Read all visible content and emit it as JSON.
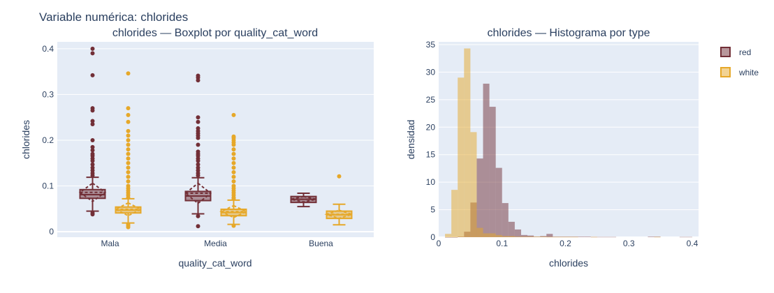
{
  "title": "Variable numérica: chlorides",
  "colors": {
    "red": "#722f37",
    "white": "#e6a829"
  },
  "chart_data": [
    {
      "type": "box",
      "title": "chlorides — Boxplot por quality_cat_word",
      "xlabel": "quality_cat_word",
      "ylabel": "chlorides",
      "categories": [
        "Mala",
        "Media",
        "Buena"
      ],
      "ylim": [
        -0.012,
        0.415
      ],
      "yticks": [
        0,
        0.1,
        0.2,
        0.3,
        0.4
      ],
      "ytick_labels": [
        "0",
        "0.1",
        "0.2",
        "0.3",
        "0.4"
      ],
      "series": [
        {
          "name": "red",
          "boxes": [
            {
              "category": "Mala",
              "lowerfence": 0.045,
              "q1": 0.073,
              "median": 0.081,
              "mean": 0.086,
              "q3": 0.092,
              "upperfence": 0.119,
              "sd": 0.02,
              "outliers": [
                0.4,
                0.39,
                0.342,
                0.27,
                0.265,
                0.242,
                0.235,
                0.2,
                0.185,
                0.178,
                0.17,
                0.166,
                0.16,
                0.155,
                0.147,
                0.14,
                0.134,
                0.128,
                0.123,
                0.041,
                0.038
              ]
            },
            {
              "category": "Media",
              "lowerfence": 0.039,
              "q1": 0.068,
              "median": 0.078,
              "mean": 0.084,
              "q3": 0.088,
              "upperfence": 0.118,
              "sd": 0.022,
              "outliers": [
                0.341,
                0.337,
                0.331,
                0.25,
                0.24,
                0.226,
                0.22,
                0.215,
                0.21,
                0.205,
                0.19,
                0.175,
                0.17,
                0.166,
                0.16,
                0.155,
                0.147,
                0.14,
                0.134,
                0.128,
                0.123,
                0.034,
                0.012
              ]
            },
            {
              "category": "Buena",
              "lowerfence": 0.055,
              "q1": 0.064,
              "median": 0.071,
              "mean": 0.071,
              "q3": 0.077,
              "upperfence": 0.084,
              "sd": 0.006,
              "outliers": []
            }
          ]
        },
        {
          "name": "white",
          "boxes": [
            {
              "category": "Mala",
              "lowerfence": 0.019,
              "q1": 0.041,
              "median": 0.047,
              "mean": 0.049,
              "q3": 0.054,
              "upperfence": 0.072,
              "sd": 0.014,
              "outliers": [
                0.346,
                0.27,
                0.255,
                0.24,
                0.22,
                0.21,
                0.2,
                0.19,
                0.18,
                0.17,
                0.16,
                0.15,
                0.14,
                0.13,
                0.12,
                0.11,
                0.1,
                0.095,
                0.09,
                0.085,
                0.08,
                0.075,
                0.016,
                0.013,
                0.01
              ]
            },
            {
              "category": "Media",
              "lowerfence": 0.016,
              "q1": 0.035,
              "median": 0.042,
              "mean": 0.044,
              "q3": 0.049,
              "upperfence": 0.069,
              "sd": 0.013,
              "outliers": [
                0.255,
                0.208,
                0.205,
                0.2,
                0.195,
                0.19,
                0.18,
                0.17,
                0.16,
                0.15,
                0.14,
                0.13,
                0.12,
                0.11,
                0.1,
                0.095,
                0.09,
                0.085,
                0.08,
                0.075,
                0.072,
                0.013
              ]
            },
            {
              "category": "Buena",
              "lowerfence": 0.015,
              "q1": 0.029,
              "median": 0.037,
              "mean": 0.038,
              "q3": 0.045,
              "upperfence": 0.06,
              "sd": 0.009,
              "outliers": [
                0.121
              ]
            }
          ]
        }
      ]
    },
    {
      "type": "histogram",
      "title": "chlorides — Histograma por type",
      "xlabel": "chlorides",
      "ylabel": "densidad",
      "xlim": [
        0,
        0.41
      ],
      "ylim": [
        0,
        35.5
      ],
      "xticks": [
        0,
        0.1,
        0.2,
        0.3,
        0.4
      ],
      "xtick_labels": [
        "0",
        "0.1",
        "0.2",
        "0.3",
        "0.4"
      ],
      "yticks": [
        0,
        5,
        10,
        15,
        20,
        25,
        30,
        35
      ],
      "ytick_labels": [
        "0",
        "5",
        "10",
        "15",
        "20",
        "25",
        "30",
        "35"
      ],
      "legend_position": "top-right",
      "bin_width": 0.01,
      "series": [
        {
          "name": "red",
          "bins": [
            [
              0.01,
              0
            ],
            [
              0.02,
              0
            ],
            [
              0.03,
              0.1
            ],
            [
              0.04,
              1.0
            ],
            [
              0.05,
              6.3
            ],
            [
              0.06,
              14.3
            ],
            [
              0.07,
              27.9
            ],
            [
              0.08,
              23.7
            ],
            [
              0.09,
              12.6
            ],
            [
              0.1,
              6.2
            ],
            [
              0.11,
              2.8
            ],
            [
              0.12,
              1.4
            ],
            [
              0.13,
              0.4
            ],
            [
              0.14,
              0.3
            ],
            [
              0.15,
              0.1
            ],
            [
              0.16,
              0.2
            ],
            [
              0.17,
              0.6
            ],
            [
              0.18,
              0.1
            ],
            [
              0.19,
              0.1
            ],
            [
              0.2,
              0.1
            ],
            [
              0.21,
              0.1
            ],
            [
              0.22,
              0.1
            ],
            [
              0.23,
              0.1
            ],
            [
              0.24,
              0.05
            ],
            [
              0.25,
              0.05
            ],
            [
              0.26,
              0.05
            ],
            [
              0.27,
              0.05
            ],
            [
              0.33,
              0.1
            ],
            [
              0.34,
              0.1
            ],
            [
              0.38,
              0.05
            ],
            [
              0.39,
              0.05
            ]
          ]
        },
        {
          "name": "white",
          "bins": [
            [
              0.01,
              0.6
            ],
            [
              0.02,
              8.6
            ],
            [
              0.03,
              29.0
            ],
            [
              0.04,
              34.3
            ],
            [
              0.05,
              19.1
            ],
            [
              0.06,
              1.7
            ],
            [
              0.07,
              0.7
            ],
            [
              0.08,
              0.7
            ],
            [
              0.09,
              0.4
            ],
            [
              0.1,
              0.2
            ],
            [
              0.11,
              0.2
            ],
            [
              0.12,
              0.1
            ],
            [
              0.13,
              0.1
            ],
            [
              0.14,
              0.1
            ],
            [
              0.15,
              0.1
            ],
            [
              0.16,
              0.1
            ],
            [
              0.17,
              0.05
            ],
            [
              0.18,
              0.05
            ],
            [
              0.19,
              0.05
            ],
            [
              0.2,
              0.05
            ],
            [
              0.21,
              0.05
            ],
            [
              0.24,
              0.05
            ],
            [
              0.34,
              0.05
            ]
          ]
        }
      ]
    }
  ]
}
